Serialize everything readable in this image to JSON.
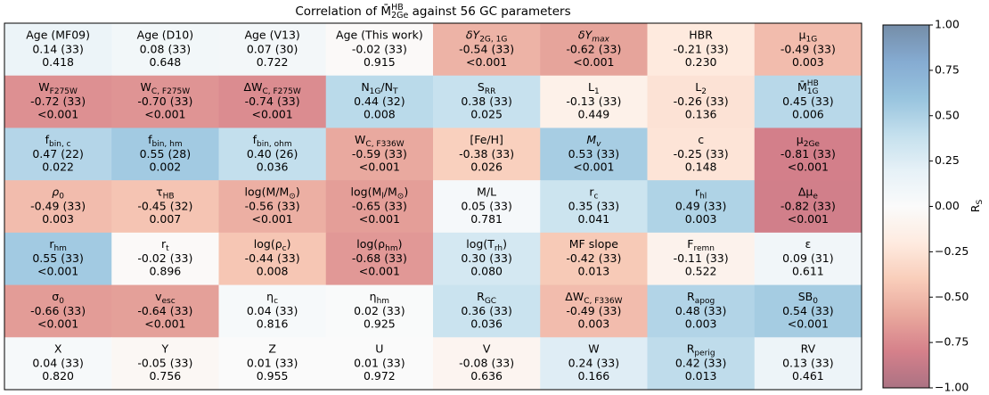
{
  "chart_data": {
    "type": "heatmap",
    "title": [
      {
        "t": "Correlation of "
      },
      {
        "t": "M̄"
      },
      {
        "t": "HB",
        "k": "sup"
      },
      {
        "t": "2Ge",
        "k": "sub"
      },
      {
        "t": " against 56 GC parameters"
      }
    ],
    "labels": [
      [
        {
          "t": "Age (MF09)"
        }
      ],
      [
        {
          "t": "Age (D10)"
        }
      ],
      [
        {
          "t": "Age (V13)"
        }
      ],
      [
        {
          "t": "Age (This work)"
        }
      ],
      [
        {
          "t": "δY",
          "k": "it"
        },
        {
          "t": "2G, 1G",
          "k": "sub"
        }
      ],
      [
        {
          "t": "δY",
          "k": "it"
        },
        {
          "t": "max",
          "k": "itsub"
        }
      ],
      [
        {
          "t": "HBR"
        }
      ],
      [
        {
          "t": "μ"
        },
        {
          "t": "1G",
          "k": "sub"
        }
      ],
      [
        {
          "t": "W"
        },
        {
          "t": "F275W",
          "k": "sub"
        }
      ],
      [
        {
          "t": "W"
        },
        {
          "t": "C, F275W",
          "k": "sub"
        }
      ],
      [
        {
          "t": "ΔW"
        },
        {
          "t": "C, F275W",
          "k": "sub"
        }
      ],
      [
        {
          "t": "N"
        },
        {
          "t": "1G",
          "k": "sub"
        },
        {
          "t": "/N"
        },
        {
          "t": "T",
          "k": "sub"
        }
      ],
      [
        {
          "t": "S"
        },
        {
          "t": "RR",
          "k": "sub"
        }
      ],
      [
        {
          "t": "L"
        },
        {
          "t": "1",
          "k": "sub"
        }
      ],
      [
        {
          "t": "L"
        },
        {
          "t": "2",
          "k": "sub"
        }
      ],
      [
        {
          "t": "M̄"
        },
        {
          "t": "HB",
          "k": "sup"
        },
        {
          "t": "1G",
          "k": "sub"
        }
      ],
      [
        {
          "t": "f"
        },
        {
          "t": "bin, c",
          "k": "sub"
        }
      ],
      [
        {
          "t": "f"
        },
        {
          "t": "bin, hm",
          "k": "sub"
        }
      ],
      [
        {
          "t": "f"
        },
        {
          "t": "bin, ohm",
          "k": "sub"
        }
      ],
      [
        {
          "t": "W"
        },
        {
          "t": "C, F336W",
          "k": "sub"
        }
      ],
      [
        {
          "t": "[Fe/H]"
        }
      ],
      [
        {
          "t": "M",
          "k": "it"
        },
        {
          "t": "v",
          "k": "itsub"
        }
      ],
      [
        {
          "t": "c"
        }
      ],
      [
        {
          "t": "μ"
        },
        {
          "t": "2Ge",
          "k": "sub"
        }
      ],
      [
        {
          "t": "ρ",
          "k": "it"
        },
        {
          "t": "0",
          "k": "sub"
        }
      ],
      [
        {
          "t": "τ"
        },
        {
          "t": "HB",
          "k": "sub"
        }
      ],
      [
        {
          "t": "log(M/M"
        },
        {
          "t": "⊙",
          "k": "sub"
        },
        {
          "t": ")"
        }
      ],
      [
        {
          "t": "log(M"
        },
        {
          "t": "l",
          "k": "sub"
        },
        {
          "t": "/M"
        },
        {
          "t": "⊙",
          "k": "sub"
        },
        {
          "t": ")"
        }
      ],
      [
        {
          "t": "M/L"
        }
      ],
      [
        {
          "t": "r"
        },
        {
          "t": "c",
          "k": "sub"
        }
      ],
      [
        {
          "t": "r"
        },
        {
          "t": "hl",
          "k": "sub"
        }
      ],
      [
        {
          "t": "Δμ"
        },
        {
          "t": "e",
          "k": "sub"
        }
      ],
      [
        {
          "t": "r"
        },
        {
          "t": "hm",
          "k": "sub"
        }
      ],
      [
        {
          "t": "r"
        },
        {
          "t": "t",
          "k": "sub"
        }
      ],
      [
        {
          "t": "log(ρ"
        },
        {
          "t": "c",
          "k": "sub"
        },
        {
          "t": ")"
        }
      ],
      [
        {
          "t": "log(ρ"
        },
        {
          "t": "hm",
          "k": "sub"
        },
        {
          "t": ")"
        }
      ],
      [
        {
          "t": "log(T"
        },
        {
          "t": "rh",
          "k": "sub"
        },
        {
          "t": ")"
        }
      ],
      [
        {
          "t": "MF slope"
        }
      ],
      [
        {
          "t": "F"
        },
        {
          "t": "remn",
          "k": "sub"
        }
      ],
      [
        {
          "t": "ε"
        }
      ],
      [
        {
          "t": "σ"
        },
        {
          "t": "0",
          "k": "sub"
        }
      ],
      [
        {
          "t": "v"
        },
        {
          "t": "esc",
          "k": "sub"
        }
      ],
      [
        {
          "t": "η"
        },
        {
          "t": "c",
          "k": "sub"
        }
      ],
      [
        {
          "t": "η"
        },
        {
          "t": "hm",
          "k": "sub"
        }
      ],
      [
        {
          "t": "R"
        },
        {
          "t": "GC",
          "k": "sub"
        }
      ],
      [
        {
          "t": "ΔW"
        },
        {
          "t": "C, F336W",
          "k": "sub"
        }
      ],
      [
        {
          "t": "R"
        },
        {
          "t": "apog",
          "k": "sub"
        }
      ],
      [
        {
          "t": "SB"
        },
        {
          "t": "0",
          "k": "sub"
        }
      ],
      [
        {
          "t": "X"
        }
      ],
      [
        {
          "t": "Y"
        }
      ],
      [
        {
          "t": "Z"
        }
      ],
      [
        {
          "t": "U"
        }
      ],
      [
        {
          "t": "V"
        }
      ],
      [
        {
          "t": "W"
        }
      ],
      [
        {
          "t": "R"
        },
        {
          "t": "perig",
          "k": "sub"
        }
      ],
      [
        {
          "t": "RV"
        }
      ]
    ],
    "values": [
      0.14,
      0.08,
      0.07,
      -0.02,
      -0.54,
      -0.62,
      -0.21,
      -0.49,
      -0.72,
      -0.7,
      -0.74,
      0.44,
      0.38,
      -0.13,
      -0.26,
      0.45,
      0.47,
      0.55,
      0.4,
      -0.59,
      -0.38,
      0.53,
      -0.25,
      -0.81,
      -0.49,
      -0.45,
      -0.56,
      -0.65,
      0.05,
      0.35,
      0.49,
      -0.82,
      0.55,
      -0.02,
      -0.44,
      -0.68,
      0.3,
      -0.42,
      -0.11,
      0.09,
      -0.66,
      -0.64,
      0.04,
      0.02,
      0.36,
      -0.49,
      0.48,
      0.54,
      0.04,
      -0.05,
      0.01,
      0.01,
      -0.08,
      0.24,
      0.42,
      0.13
    ],
    "value_labels": [
      "0.14",
      "0.08",
      "0.07",
      "-0.02",
      "-0.54",
      "-0.62",
      "-0.21",
      "-0.49",
      "-0.72",
      "-0.70",
      "-0.74",
      "0.44",
      "0.38",
      "-0.13",
      "-0.26",
      "0.45",
      "0.47",
      "0.55",
      "0.40",
      "-0.59",
      "-0.38",
      "0.53",
      "-0.25",
      "-0.81",
      "-0.49",
      "-0.45",
      "-0.56",
      "-0.65",
      "0.05",
      "0.35",
      "0.49",
      "-0.82",
      "0.55",
      "-0.02",
      "-0.44",
      "-0.68",
      "0.30",
      "-0.42",
      "-0.11",
      "0.09",
      "-0.66",
      "-0.64",
      "0.04",
      "0.02",
      "0.36",
      "-0.49",
      "0.48",
      "0.54",
      "0.04",
      "-0.05",
      "0.01",
      "0.01",
      "-0.08",
      "0.24",
      "0.42",
      "0.13"
    ],
    "n_labels": [
      "(33)",
      "(33)",
      "(30)",
      "(33)",
      "(33)",
      "(33)",
      "(33)",
      "(33)",
      "(33)",
      "(33)",
      "(33)",
      "(32)",
      "(33)",
      "(33)",
      "(33)",
      "(33)",
      "(22)",
      "(28)",
      "(26)",
      "(33)",
      "(33)",
      "(33)",
      "(33)",
      "(33)",
      "(33)",
      "(32)",
      "(33)",
      "(33)",
      "(33)",
      "(33)",
      "(33)",
      "(33)",
      "(33)",
      "(33)",
      "(33)",
      "(33)",
      "(33)",
      "(33)",
      "(33)",
      "(31)",
      "(33)",
      "(33)",
      "(33)",
      "(33)",
      "(33)",
      "(33)",
      "(33)",
      "(33)",
      "(33)",
      "(33)",
      "(33)",
      "(33)",
      "(33)",
      "(33)",
      "(33)",
      "(33)"
    ],
    "p_labels": [
      "0.418",
      "0.648",
      "0.722",
      "0.915",
      "<0.001",
      "<0.001",
      "0.230",
      "0.003",
      "<0.001",
      "<0.001",
      "<0.001",
      "0.008",
      "0.025",
      "0.449",
      "0.136",
      "0.006",
      "0.022",
      "0.002",
      "0.036",
      "<0.001",
      "0.026",
      "<0.001",
      "0.148",
      "<0.001",
      "0.003",
      "0.007",
      "<0.001",
      "<0.001",
      "0.781",
      "0.041",
      "0.003",
      "<0.001",
      "<0.001",
      "0.896",
      "0.008",
      "<0.001",
      "0.080",
      "0.013",
      "0.522",
      "0.611",
      "<0.001",
      "<0.001",
      "0.816",
      "0.925",
      "0.036",
      "0.003",
      "0.003",
      "<0.001",
      "0.820",
      "0.756",
      "0.955",
      "0.972",
      "0.636",
      "0.166",
      "0.013",
      "0.461"
    ],
    "colormap": "RdBu",
    "clim": [
      -1,
      1
    ],
    "cticks": [
      {
        "value": 1,
        "label": "1.00"
      },
      {
        "value": 0.75,
        "label": "0.75"
      },
      {
        "value": 0.5,
        "label": "0.50"
      },
      {
        "value": 0.25,
        "label": "0.25"
      },
      {
        "value": 0,
        "label": "0.00"
      },
      {
        "value": -0.25,
        "label": "−0.25"
      },
      {
        "value": -0.5,
        "label": "−0.50"
      },
      {
        "value": -0.75,
        "label": "−0.75"
      },
      {
        "value": -1,
        "label": "−1.00"
      }
    ],
    "colorbar_label": [
      {
        "t": "R"
      },
      {
        "t": "S",
        "k": "sub"
      }
    ]
  }
}
